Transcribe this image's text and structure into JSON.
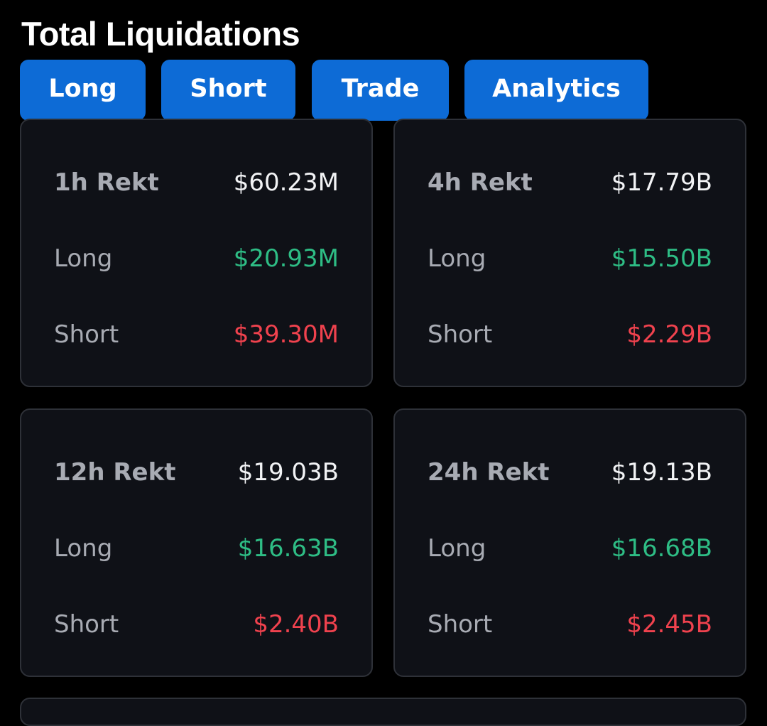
{
  "header": {
    "title": "Total Liquidations"
  },
  "tabs": [
    {
      "label": "Long"
    },
    {
      "label": "Short"
    },
    {
      "label": "Trade"
    },
    {
      "label": "Analytics"
    }
  ],
  "cards": [
    {
      "title": "1h Rekt",
      "total": "$60.23M",
      "long_label": "Long",
      "long_value": "$20.93M",
      "short_label": "Short",
      "short_value": "$39.30M"
    },
    {
      "title": "4h Rekt",
      "total": "$17.79B",
      "long_label": "Long",
      "long_value": "$15.50B",
      "short_label": "Short",
      "short_value": "$2.29B"
    },
    {
      "title": "12h Rekt",
      "total": "$19.03B",
      "long_label": "Long",
      "long_value": "$16.63B",
      "short_label": "Short",
      "short_value": "$2.40B"
    },
    {
      "title": "24h Rekt",
      "total": "$19.13B",
      "long_label": "Long",
      "long_value": "$16.68B",
      "short_label": "Short",
      "short_value": "$2.45B"
    }
  ],
  "colors": {
    "background": "#000000",
    "card": "#0f1117",
    "tab": "#0d6bd6",
    "long": "#2ebd85",
    "short": "#f0424e"
  }
}
